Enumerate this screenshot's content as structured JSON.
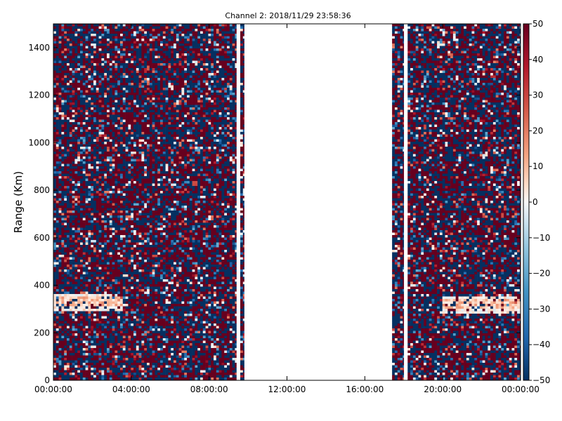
{
  "chart_data": {
    "type": "heatmap",
    "title": "Channel 2: 2018/11/29 23:58:36",
    "xlabel": "",
    "ylabel": "Range (Km)",
    "x_range": [
      "00:00:00",
      "24:00:00"
    ],
    "y_range": [
      0,
      1500
    ],
    "x_ticks": [
      "00:00:00",
      "04:00:00",
      "08:00:00",
      "12:00:00",
      "16:00:00",
      "20:00:00",
      "00:00:00"
    ],
    "y_ticks": [
      0,
      200,
      400,
      600,
      800,
      1000,
      1200,
      1400
    ],
    "colorbar": {
      "colormap": "RdBu_r",
      "min": -50,
      "max": 50,
      "ticks": [
        50,
        40,
        30,
        20,
        10,
        0,
        -10,
        -20,
        -30,
        -40,
        -50
      ],
      "colors": {
        "low": "#053061",
        "mid": "#f7f7f7",
        "high": "#67001f"
      }
    },
    "data_segments_hours": [
      {
        "start": 0.0,
        "end": 9.4
      },
      {
        "start": 9.6,
        "end": 9.8
      },
      {
        "start": 17.4,
        "end": 18.0
      },
      {
        "start": 18.2,
        "end": 24.0
      }
    ],
    "features": [
      {
        "time_start": 0.0,
        "time_end": 3.5,
        "range_center_km": 330,
        "note": "echo band near 300-350 km, values near 0 to +20"
      },
      {
        "time_start": 20.0,
        "time_end": 24.0,
        "range_center_km": 320,
        "note": "echo band near 280-380 km, values near 0 to +20"
      }
    ]
  }
}
